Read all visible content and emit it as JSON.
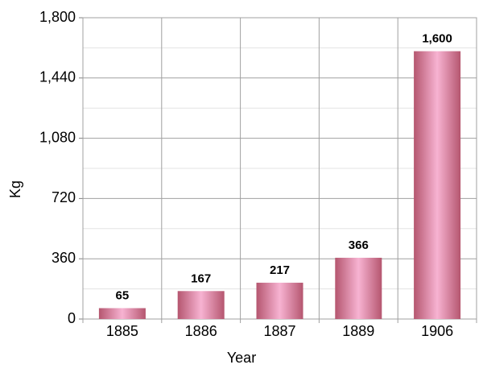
{
  "chart_data": {
    "type": "bar",
    "x_label": "Year",
    "y_label": "Kg",
    "categories": [
      "1885",
      "1886",
      "1887",
      "1889",
      "1906"
    ],
    "values": [
      65,
      167,
      217,
      366,
      1600
    ],
    "value_labels": [
      "65",
      "167",
      "217",
      "366",
      "1,600"
    ],
    "gradient": [
      "#b5566f",
      "#f7b3d2",
      "#b5566f"
    ],
    "ylim": [
      0,
      1800
    ],
    "yticks": [
      0,
      360,
      720,
      {
        "value": 1080,
        "label": "1,080"
      },
      {
        "value": 1440,
        "label": "1,440"
      },
      {
        "value": 1800,
        "label": "1,800"
      }
    ],
    "minor_yticks": [
      180,
      540,
      900,
      1260,
      1620
    ],
    "grid": true
  }
}
